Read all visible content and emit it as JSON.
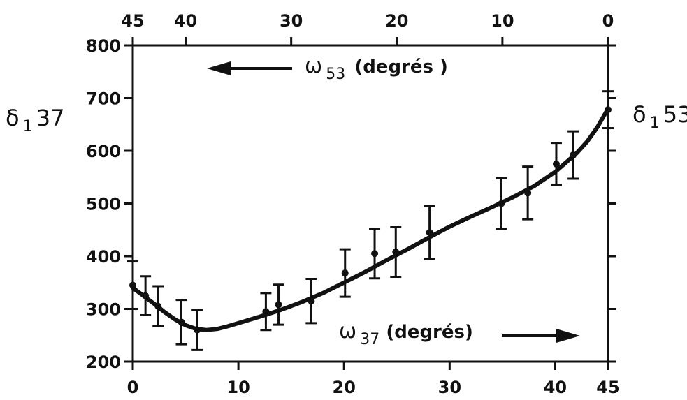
{
  "chart_data": {
    "type": "scatter",
    "title": "",
    "x_bottom": {
      "label": "ω37 (degrés)",
      "symbol": "ω",
      "subscript": "37",
      "unit": "(degrés)",
      "range": [
        0,
        45
      ],
      "ticks": [
        0,
        10,
        20,
        30,
        40,
        45
      ]
    },
    "x_top": {
      "label": "ω53 (degrés )",
      "symbol": "ω",
      "subscript": "53",
      "unit": "(degrés )",
      "range": [
        45,
        0
      ],
      "ticks": [
        45,
        40,
        30,
        20,
        10,
        0
      ]
    },
    "y_left": {
      "label": "δ137",
      "symbol": "δ",
      "subscript": "1",
      "suffix": "37",
      "range": [
        200,
        800
      ],
      "ticks": [
        200,
        300,
        400,
        500,
        600,
        700,
        800
      ]
    },
    "y_right": {
      "label": "δ153",
      "symbol": "δ",
      "subscript": "1",
      "suffix": "53"
    },
    "grid": false,
    "series": [
      {
        "points": [
          {
            "x": 0,
            "y": 345,
            "err": 45
          },
          {
            "x": 1.2,
            "y": 325,
            "err": 37
          },
          {
            "x": 2.4,
            "y": 305,
            "err": 38
          },
          {
            "x": 4.6,
            "y": 275,
            "err": 42
          },
          {
            "x": 6.1,
            "y": 260,
            "err": 38
          },
          {
            "x": 12.6,
            "y": 295,
            "err": 35
          },
          {
            "x": 13.8,
            "y": 308,
            "err": 38
          },
          {
            "x": 16.9,
            "y": 315,
            "err": 42
          },
          {
            "x": 20.1,
            "y": 368,
            "err": 45
          },
          {
            "x": 22.9,
            "y": 405,
            "err": 47
          },
          {
            "x": 24.9,
            "y": 408,
            "err": 47
          },
          {
            "x": 28.1,
            "y": 445,
            "err": 50
          },
          {
            "x": 34.9,
            "y": 500,
            "err": 48
          },
          {
            "x": 37.4,
            "y": 520,
            "err": 50
          },
          {
            "x": 40.1,
            "y": 575,
            "err": 40
          },
          {
            "x": 41.7,
            "y": 592,
            "err": 45
          },
          {
            "x": 45,
            "y": 678,
            "err": 35
          }
        ],
        "fit_curve": [
          [
            0,
            340
          ],
          [
            1,
            325
          ],
          [
            2,
            310
          ],
          [
            3,
            294
          ],
          [
            4,
            280
          ],
          [
            5,
            269
          ],
          [
            6,
            262
          ],
          [
            7,
            260
          ],
          [
            8,
            262
          ],
          [
            9,
            267
          ],
          [
            10,
            273
          ],
          [
            12,
            285
          ],
          [
            14,
            298
          ],
          [
            16,
            313
          ],
          [
            18,
            330
          ],
          [
            20,
            350
          ],
          [
            22,
            370
          ],
          [
            24,
            392
          ],
          [
            26,
            413
          ],
          [
            28,
            435
          ],
          [
            30,
            456
          ],
          [
            32,
            475
          ],
          [
            34,
            493
          ],
          [
            36,
            512
          ],
          [
            38,
            533
          ],
          [
            40,
            560
          ],
          [
            42,
            595
          ],
          [
            43,
            617
          ],
          [
            44,
            645
          ],
          [
            45,
            680
          ]
        ]
      }
    ]
  }
}
